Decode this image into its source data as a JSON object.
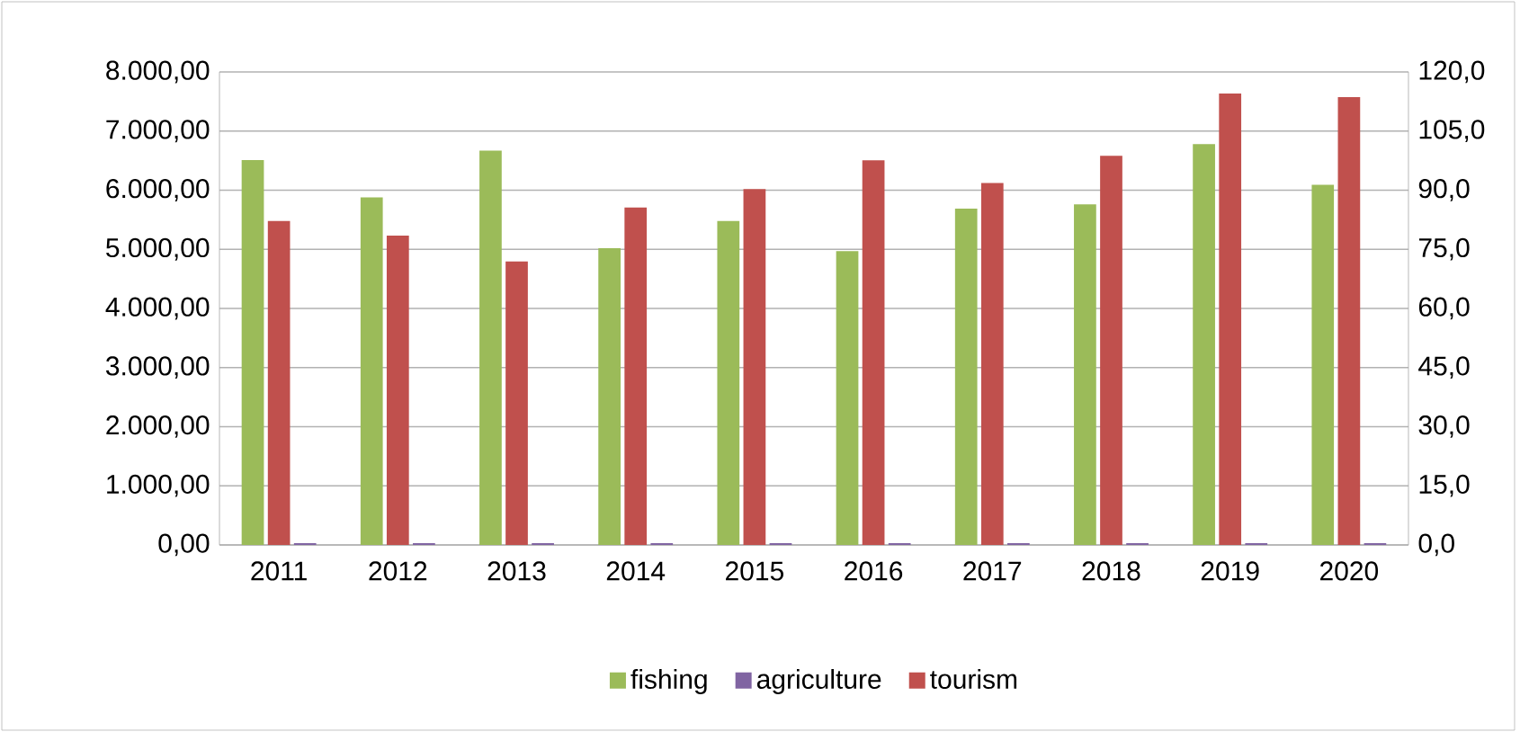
{
  "chart_data": {
    "type": "bar",
    "categories": [
      "2011",
      "2012",
      "2013",
      "2014",
      "2015",
      "2016",
      "2017",
      "2018",
      "2019",
      "2020"
    ],
    "series": [
      {
        "name": "fishing",
        "color": "#9bbb59",
        "values": [
          6510,
          5880,
          6670,
          5020,
          5480,
          4970,
          5690,
          5760,
          6780,
          6090
        ]
      },
      {
        "name": "agriculture",
        "color": "#8064a2",
        "values": [
          30,
          30,
          30,
          30,
          30,
          30,
          30,
          30,
          30,
          30
        ]
      },
      {
        "name": "tourism",
        "color": "#c0504d",
        "axis": "y2",
        "values": [
          82.2,
          78.5,
          71.9,
          85.6,
          90.3,
          97.6,
          91.8,
          98.7,
          114.5,
          113.6
        ]
      }
    ],
    "ylim": [
      0,
      8000
    ],
    "yticks": [
      {
        "value": 0,
        "label": "0,00"
      },
      {
        "value": 1000,
        "label": "1.000,00"
      },
      {
        "value": 2000,
        "label": "2.000,00"
      },
      {
        "value": 3000,
        "label": "3.000,00"
      },
      {
        "value": 4000,
        "label": "4.000,00"
      },
      {
        "value": 5000,
        "label": "5.000,00"
      },
      {
        "value": 6000,
        "label": "6.000,00"
      },
      {
        "value": 7000,
        "label": "7.000,00"
      },
      {
        "value": 8000,
        "label": "8.000,00"
      }
    ],
    "y2lim": [
      0,
      120
    ],
    "y2ticks": [
      {
        "value": 0,
        "label": "0,0"
      },
      {
        "value": 15,
        "label": "15,0"
      },
      {
        "value": 30,
        "label": "30,0"
      },
      {
        "value": 45,
        "label": "45,0"
      },
      {
        "value": 60,
        "label": "60,0"
      },
      {
        "value": 75,
        "label": "75,0"
      },
      {
        "value": 90,
        "label": "90,0"
      },
      {
        "value": 105,
        "label": "105,0"
      },
      {
        "value": 120,
        "label": "120,0"
      }
    ],
    "grid": "y",
    "legend": "bottom"
  }
}
